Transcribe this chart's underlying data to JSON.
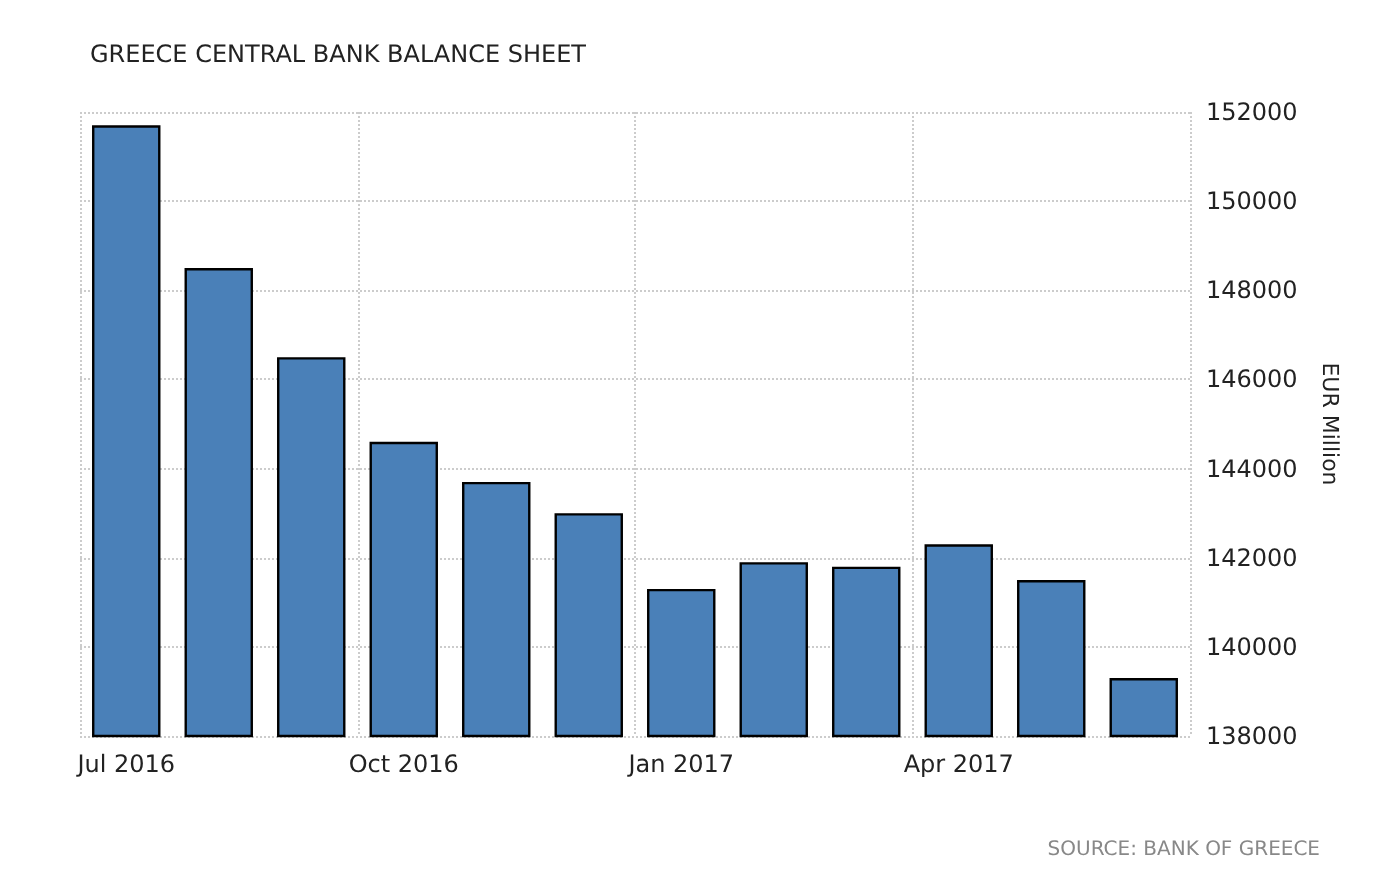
{
  "chart_data": {
    "type": "bar",
    "title": "GREECE CENTRAL BANK BALANCE SHEET",
    "ylabel": "EUR Million",
    "categories": [
      "Jul 2016",
      null,
      null,
      "Oct 2016",
      null,
      null,
      "Jan 2017",
      null,
      null,
      "Apr 2017",
      null,
      null
    ],
    "values": [
      151700,
      148500,
      146500,
      144600,
      143700,
      143000,
      141300,
      141900,
      141800,
      142300,
      141500,
      139300
    ],
    "color": "#4a80b8",
    "ylim": [
      138000,
      152000
    ],
    "yticks": [
      138000,
      140000,
      142000,
      144000,
      146000,
      148000,
      150000,
      152000
    ],
    "grid": true,
    "annotations": [
      "SOURCE: BANK OF GREECE"
    ]
  }
}
